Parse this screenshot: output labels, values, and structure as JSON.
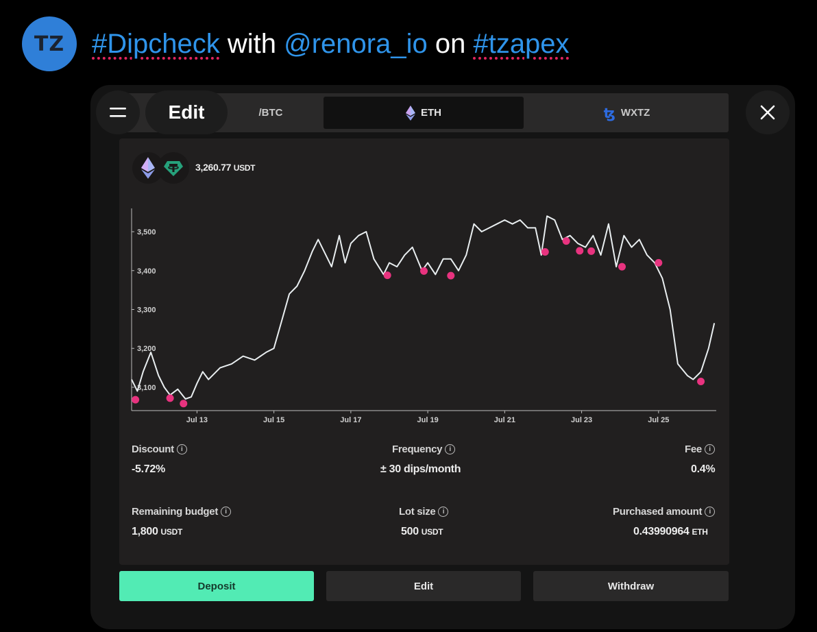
{
  "tweet": {
    "avatar_text": "TZ",
    "hashtag1": "#Dipcheck",
    "word_with": " with ",
    "mention": "@renora_io",
    "word_on": " on ",
    "hashtag2": "#tzapex"
  },
  "overlay": {
    "edit_label": "Edit"
  },
  "tabs": [
    {
      "label": "WBTC",
      "visible_label": "/BTC",
      "icon": "bitcoin-icon"
    },
    {
      "label": "ETH",
      "icon": "ethereum-icon",
      "active": true
    },
    {
      "label": "WXTZ",
      "icon": "tezos-icon"
    }
  ],
  "pair": {
    "price": "3,260.77",
    "unit": "USDT"
  },
  "chart_data": {
    "type": "line",
    "x_ticks": [
      "Jul 13",
      "Jul 15",
      "Jul 17",
      "Jul 19",
      "Jul 21",
      "Jul 23",
      "Jul 25"
    ],
    "y_ticks": [
      "3,100",
      "3,200",
      "3,300",
      "3,400",
      "3,500"
    ],
    "ylim": [
      3040,
      3560
    ],
    "xlim": [
      11.3,
      26.5
    ],
    "series": [
      {
        "x": [
          11.3,
          11.45,
          11.6,
          11.8,
          12.0,
          12.15,
          12.3,
          12.5,
          12.7,
          12.85,
          13.0,
          13.15,
          13.3,
          13.6,
          13.9,
          14.2,
          14.5,
          14.8,
          15.0,
          15.2,
          15.4,
          15.6,
          15.8,
          16.0,
          16.15,
          16.3,
          16.5,
          16.7,
          16.85,
          17.0,
          17.2,
          17.4,
          17.6,
          17.85,
          18.0,
          18.2,
          18.4,
          18.6,
          18.85,
          19.0,
          19.2,
          19.4,
          19.6,
          19.8,
          20.0,
          20.2,
          20.4,
          20.6,
          20.8,
          21.0,
          21.2,
          21.4,
          21.6,
          21.8,
          21.95,
          22.1,
          22.3,
          22.5,
          22.7,
          22.9,
          23.1,
          23.3,
          23.5,
          23.7,
          23.9,
          24.1,
          24.3,
          24.5,
          24.7,
          24.9,
          25.1,
          25.3,
          25.5,
          25.75,
          25.9,
          26.1,
          26.3,
          26.45
        ],
        "y": [
          3120,
          3090,
          3140,
          3190,
          3130,
          3100,
          3080,
          3095,
          3070,
          3075,
          3110,
          3140,
          3120,
          3150,
          3160,
          3180,
          3170,
          3190,
          3200,
          3270,
          3340,
          3360,
          3400,
          3450,
          3480,
          3450,
          3410,
          3490,
          3420,
          3470,
          3490,
          3500,
          3430,
          3390,
          3420,
          3410,
          3440,
          3460,
          3400,
          3420,
          3390,
          3430,
          3430,
          3400,
          3440,
          3520,
          3500,
          3510,
          3520,
          3530,
          3520,
          3530,
          3510,
          3510,
          3440,
          3540,
          3530,
          3480,
          3490,
          3470,
          3460,
          3490,
          3440,
          3520,
          3410,
          3490,
          3460,
          3480,
          3440,
          3420,
          3380,
          3300,
          3160,
          3130,
          3120,
          3140,
          3200,
          3265
        ]
      }
    ],
    "dip_points": [
      {
        "x": 11.4,
        "y": 3068
      },
      {
        "x": 12.3,
        "y": 3072
      },
      {
        "x": 12.65,
        "y": 3058
      },
      {
        "x": 17.95,
        "y": 3388
      },
      {
        "x": 18.9,
        "y": 3399
      },
      {
        "x": 19.6,
        "y": 3387
      },
      {
        "x": 22.05,
        "y": 3448
      },
      {
        "x": 22.6,
        "y": 3476
      },
      {
        "x": 22.95,
        "y": 3451
      },
      {
        "x": 23.25,
        "y": 3450
      },
      {
        "x": 24.05,
        "y": 3410
      },
      {
        "x": 25.0,
        "y": 3420
      },
      {
        "x": 26.1,
        "y": 3115
      }
    ],
    "title": "",
    "xlabel": "",
    "ylabel": "",
    "grid": false,
    "line_color": "#e9eef0",
    "dip_color": "#e8337f"
  },
  "stats": {
    "discount": {
      "label": "Discount",
      "value": "-5.72%"
    },
    "frequency": {
      "label": "Frequency",
      "value": "± 30 dips/month"
    },
    "fee": {
      "label": "Fee",
      "value": "0.4%"
    },
    "remaining_budget": {
      "label": "Remaining budget",
      "value": "1,800",
      "unit": "USDT"
    },
    "lot_size": {
      "label": "Lot size",
      "value": "500",
      "unit": "USDT"
    },
    "purchased_amount": {
      "label": "Purchased amount",
      "value": "0.43990964",
      "unit": "ETH"
    }
  },
  "actions": {
    "deposit": "Deposit",
    "edit": "Edit",
    "withdraw": "Withdraw"
  },
  "colors": {
    "accent": "#52ebb4",
    "link": "#2f94ea",
    "dip": "#e8337f",
    "avatar": "#2f7fd8"
  }
}
